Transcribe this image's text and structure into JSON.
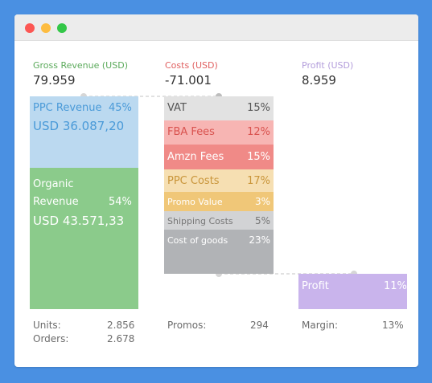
{
  "window": {
    "controls": [
      "close",
      "minimize",
      "maximize"
    ]
  },
  "colors": {
    "background": "#4A90E2",
    "gross_label": "#5BAA5B",
    "costs_label": "#E06060",
    "profit_label": "#B39DDB",
    "ppc_revenue_block": "#BBD9F0",
    "ppc_revenue_text": "#4A9AD8",
    "organic_block": "#8BCB8B",
    "vat": "#E2E2E2",
    "fba": "#F7B5B3",
    "amzn": "#F08A87",
    "ppc_costs": "#F6DFB2",
    "promo": "#F0C778",
    "shipping": "#D2D3D5",
    "goods": "#B1B3B6",
    "profit_block": "#C9B4EC"
  },
  "header": {
    "gross_revenue": {
      "label": "Gross Revenue (USD)",
      "value": "79.959"
    },
    "costs": {
      "label": "Costs (USD)",
      "value": "-71.001"
    },
    "profit": {
      "label": "Profit (USD)",
      "value": "8.959"
    }
  },
  "revenue": {
    "ppc": {
      "label": "PPC Revenue",
      "percent": "45%",
      "amount": "USD 36.087,20"
    },
    "organic": {
      "label_line1": "Organic",
      "label_line2": "Revenue",
      "percent": "54%",
      "amount": "USD 43.571,33"
    }
  },
  "costs": [
    {
      "label": "VAT",
      "percent": "15%"
    },
    {
      "label": "FBA Fees",
      "percent": "12%"
    },
    {
      "label": "Amzn Fees",
      "percent": "15%"
    },
    {
      "label": "PPC Costs",
      "percent": "17%"
    },
    {
      "label": "Promo Value",
      "percent": "3%"
    },
    {
      "label": "Shipping Costs",
      "percent": "5%"
    },
    {
      "label": "Cost of goods",
      "percent": "23%"
    }
  ],
  "profit_block": {
    "label": "Profit",
    "percent": "11%"
  },
  "stats": {
    "units_label": "Units:",
    "units_value": "2.856",
    "orders_label": "Orders:",
    "orders_value": "2.678",
    "promos_label": "Promos:",
    "promos_value": "294",
    "margin_label": "Margin:",
    "margin_value": "13%"
  }
}
